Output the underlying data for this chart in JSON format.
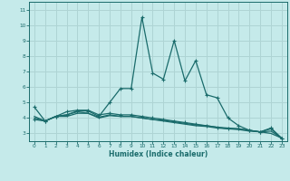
{
  "xlabel": "Humidex (Indice chaleur)",
  "ylabel": "",
  "xlim": [
    -0.5,
    23.5
  ],
  "ylim": [
    2.5,
    11.5
  ],
  "yticks": [
    3,
    4,
    5,
    6,
    7,
    8,
    9,
    10,
    11
  ],
  "xticks": [
    0,
    1,
    2,
    3,
    4,
    5,
    6,
    7,
    8,
    9,
    10,
    11,
    12,
    13,
    14,
    15,
    16,
    17,
    18,
    19,
    20,
    21,
    22,
    23
  ],
  "background_color": "#c5eaea",
  "grid_color": "#aed4d4",
  "line_color": "#1a6b6b",
  "lines": [
    {
      "x": [
        0,
        1,
        2,
        3,
        4,
        5,
        6,
        7,
        8,
        9,
        10,
        11,
        12,
        13,
        14,
        15,
        16,
        17,
        18,
        19,
        20,
        21,
        22,
        23
      ],
      "y": [
        4.7,
        3.8,
        4.1,
        4.2,
        4.45,
        4.45,
        4.1,
        5.0,
        5.9,
        5.9,
        10.5,
        6.9,
        6.5,
        9.0,
        6.4,
        7.7,
        5.5,
        5.3,
        4.0,
        3.5,
        3.2,
        3.1,
        3.35,
        2.7
      ],
      "marker": "+"
    },
    {
      "x": [
        0,
        1,
        2,
        3,
        4,
        5,
        6,
        7,
        8,
        9,
        10,
        11,
        12,
        13,
        14,
        15,
        16,
        17,
        18,
        19,
        20,
        21,
        22,
        23
      ],
      "y": [
        4.1,
        3.8,
        4.1,
        4.1,
        4.3,
        4.3,
        4.0,
        4.15,
        4.1,
        4.1,
        4.0,
        3.9,
        3.85,
        3.75,
        3.65,
        3.55,
        3.5,
        3.4,
        3.35,
        3.3,
        3.2,
        3.1,
        3.0,
        2.7
      ],
      "marker": null
    },
    {
      "x": [
        0,
        1,
        2,
        3,
        4,
        5,
        6,
        7,
        8,
        9,
        10,
        11,
        12,
        13,
        14,
        15,
        16,
        17,
        18,
        19,
        20,
        21,
        22,
        23
      ],
      "y": [
        4.0,
        3.8,
        4.1,
        4.2,
        4.4,
        4.3,
        4.05,
        4.2,
        4.1,
        4.1,
        4.0,
        3.9,
        3.8,
        3.7,
        3.6,
        3.5,
        3.45,
        3.35,
        3.3,
        3.25,
        3.15,
        3.1,
        3.15,
        2.7
      ],
      "marker": null
    },
    {
      "x": [
        0,
        1,
        2,
        3,
        4,
        5,
        6,
        7,
        8,
        9,
        10,
        11,
        12,
        13,
        14,
        15,
        16,
        17,
        18,
        19,
        20,
        21,
        22,
        23
      ],
      "y": [
        3.9,
        3.8,
        4.1,
        4.4,
        4.5,
        4.5,
        4.2,
        4.3,
        4.2,
        4.2,
        4.1,
        4.0,
        3.9,
        3.8,
        3.7,
        3.6,
        3.5,
        3.4,
        3.3,
        3.3,
        3.2,
        3.1,
        3.3,
        2.65
      ],
      "marker": "+"
    }
  ]
}
